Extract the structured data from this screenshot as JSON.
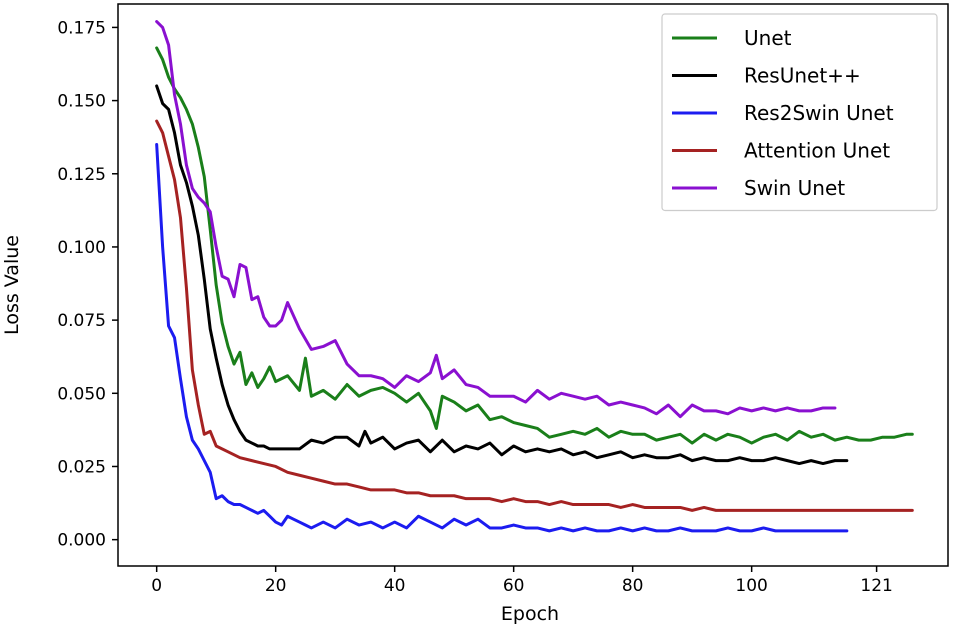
{
  "chart_data": {
    "type": "line",
    "title": "",
    "xlabel": "Epoch",
    "ylabel": "Loss Value",
    "xlim": [
      -6.5,
      133
    ],
    "ylim": [
      -0.009,
      0.183
    ],
    "xticks": [
      0,
      20,
      40,
      60,
      80,
      100,
      121
    ],
    "xtick_labels": [
      "0",
      "20",
      "40",
      "60",
      "80",
      "100",
      "121"
    ],
    "yticks": [
      0.0,
      0.025,
      0.05,
      0.075,
      0.1,
      0.125,
      0.15,
      0.175
    ],
    "ytick_labels": [
      "0.000",
      "0.025",
      "0.050",
      "0.075",
      "0.100",
      "0.125",
      "0.150",
      "0.175"
    ],
    "grid": false,
    "legend_position": "top-right",
    "series": [
      {
        "name": "Unet",
        "color": "#1a7f1a",
        "x": [
          0,
          1,
          2,
          3,
          4,
          5,
          6,
          7,
          8,
          9,
          10,
          11,
          12,
          13,
          14,
          15,
          16,
          17,
          18,
          19,
          20,
          22,
          24,
          25,
          26,
          28,
          30,
          32,
          34,
          36,
          38,
          40,
          42,
          44,
          46,
          47,
          48,
          50,
          52,
          54,
          56,
          58,
          60,
          62,
          64,
          66,
          68,
          70,
          72,
          74,
          76,
          78,
          80,
          82,
          84,
          86,
          88,
          90,
          92,
          94,
          96,
          98,
          100,
          102,
          104,
          106,
          108,
          110,
          112,
          114,
          116,
          118,
          120,
          122,
          124,
          126,
          127
        ],
        "values": [
          0.168,
          0.164,
          0.158,
          0.154,
          0.151,
          0.147,
          0.142,
          0.134,
          0.124,
          0.106,
          0.087,
          0.074,
          0.066,
          0.06,
          0.064,
          0.053,
          0.057,
          0.052,
          0.055,
          0.059,
          0.054,
          0.056,
          0.051,
          0.062,
          0.049,
          0.051,
          0.048,
          0.053,
          0.049,
          0.051,
          0.052,
          0.05,
          0.047,
          0.05,
          0.044,
          0.038,
          0.049,
          0.047,
          0.044,
          0.046,
          0.041,
          0.042,
          0.04,
          0.039,
          0.038,
          0.035,
          0.036,
          0.037,
          0.036,
          0.038,
          0.035,
          0.037,
          0.036,
          0.036,
          0.034,
          0.035,
          0.036,
          0.033,
          0.036,
          0.034,
          0.036,
          0.035,
          0.033,
          0.035,
          0.036,
          0.034,
          0.037,
          0.035,
          0.036,
          0.034,
          0.035,
          0.034,
          0.034,
          0.035,
          0.035,
          0.036,
          0.036
        ]
      },
      {
        "name": "ResUnet++",
        "color": "#000000",
        "x": [
          0,
          1,
          2,
          3,
          4,
          5,
          6,
          7,
          8,
          9,
          10,
          11,
          12,
          13,
          14,
          15,
          16,
          17,
          18,
          19,
          20,
          22,
          24,
          26,
          28,
          30,
          32,
          34,
          35,
          36,
          38,
          40,
          42,
          44,
          46,
          48,
          50,
          52,
          54,
          56,
          58,
          60,
          62,
          64,
          66,
          68,
          70,
          72,
          74,
          76,
          78,
          80,
          82,
          84,
          86,
          88,
          90,
          92,
          94,
          96,
          98,
          100,
          102,
          104,
          106,
          108,
          110,
          112,
          114,
          116
        ],
        "values": [
          0.155,
          0.149,
          0.147,
          0.139,
          0.128,
          0.122,
          0.114,
          0.104,
          0.089,
          0.072,
          0.062,
          0.053,
          0.046,
          0.041,
          0.037,
          0.034,
          0.033,
          0.032,
          0.032,
          0.031,
          0.031,
          0.031,
          0.031,
          0.034,
          0.033,
          0.035,
          0.035,
          0.032,
          0.037,
          0.033,
          0.035,
          0.031,
          0.033,
          0.034,
          0.03,
          0.034,
          0.03,
          0.032,
          0.031,
          0.033,
          0.029,
          0.032,
          0.03,
          0.031,
          0.03,
          0.031,
          0.029,
          0.03,
          0.028,
          0.029,
          0.03,
          0.028,
          0.029,
          0.028,
          0.028,
          0.029,
          0.027,
          0.028,
          0.027,
          0.027,
          0.028,
          0.027,
          0.027,
          0.028,
          0.027,
          0.026,
          0.027,
          0.026,
          0.027,
          0.027
        ]
      },
      {
        "name": "Res2Swin Unet",
        "color": "#1c1cf0",
        "x": [
          0,
          1,
          2,
          3,
          4,
          5,
          6,
          7,
          8,
          9,
          10,
          11,
          12,
          13,
          14,
          15,
          16,
          17,
          18,
          19,
          20,
          21,
          22,
          23,
          24,
          25,
          26,
          28,
          30,
          32,
          34,
          36,
          38,
          40,
          42,
          44,
          46,
          48,
          50,
          52,
          54,
          56,
          58,
          60,
          62,
          64,
          66,
          68,
          70,
          72,
          74,
          76,
          78,
          80,
          82,
          84,
          86,
          88,
          90,
          92,
          94,
          96,
          98,
          100,
          102,
          104,
          106,
          108,
          110,
          112,
          114,
          116
        ],
        "values": [
          0.135,
          0.1,
          0.073,
          0.069,
          0.055,
          0.042,
          0.034,
          0.031,
          0.027,
          0.023,
          0.014,
          0.015,
          0.013,
          0.012,
          0.012,
          0.011,
          0.01,
          0.009,
          0.01,
          0.008,
          0.006,
          0.005,
          0.008,
          0.007,
          0.006,
          0.005,
          0.004,
          0.006,
          0.004,
          0.007,
          0.005,
          0.006,
          0.004,
          0.006,
          0.004,
          0.008,
          0.006,
          0.004,
          0.007,
          0.005,
          0.007,
          0.004,
          0.004,
          0.005,
          0.004,
          0.004,
          0.003,
          0.004,
          0.003,
          0.004,
          0.003,
          0.003,
          0.004,
          0.003,
          0.004,
          0.003,
          0.003,
          0.004,
          0.003,
          0.003,
          0.003,
          0.004,
          0.003,
          0.003,
          0.004,
          0.003,
          0.003,
          0.003,
          0.003,
          0.003,
          0.003,
          0.003
        ]
      },
      {
        "name": "Attention Unet",
        "color": "#a52222",
        "x": [
          0,
          1,
          2,
          3,
          4,
          5,
          6,
          7,
          8,
          9,
          10,
          12,
          14,
          16,
          18,
          20,
          22,
          24,
          26,
          28,
          30,
          32,
          34,
          36,
          38,
          40,
          42,
          44,
          46,
          48,
          50,
          52,
          54,
          56,
          58,
          60,
          62,
          64,
          66,
          68,
          70,
          72,
          74,
          76,
          78,
          80,
          82,
          84,
          86,
          88,
          90,
          92,
          94,
          96,
          98,
          100,
          102,
          104,
          106,
          108,
          110,
          112,
          114,
          116,
          118,
          120,
          122,
          124,
          126,
          127
        ],
        "values": [
          0.143,
          0.139,
          0.131,
          0.123,
          0.11,
          0.086,
          0.058,
          0.046,
          0.036,
          0.037,
          0.032,
          0.03,
          0.028,
          0.027,
          0.026,
          0.025,
          0.023,
          0.022,
          0.021,
          0.02,
          0.019,
          0.019,
          0.018,
          0.017,
          0.017,
          0.017,
          0.016,
          0.016,
          0.015,
          0.015,
          0.015,
          0.014,
          0.014,
          0.014,
          0.013,
          0.014,
          0.013,
          0.013,
          0.012,
          0.013,
          0.012,
          0.012,
          0.012,
          0.012,
          0.011,
          0.012,
          0.011,
          0.011,
          0.011,
          0.011,
          0.01,
          0.011,
          0.01,
          0.01,
          0.01,
          0.01,
          0.01,
          0.01,
          0.01,
          0.01,
          0.01,
          0.01,
          0.01,
          0.01,
          0.01,
          0.01,
          0.01,
          0.01,
          0.01,
          0.01
        ]
      },
      {
        "name": "Swin Unet",
        "color": "#8a10d0",
        "x": [
          0,
          1,
          2,
          3,
          4,
          5,
          6,
          7,
          8,
          9,
          10,
          11,
          12,
          13,
          14,
          15,
          16,
          17,
          18,
          19,
          20,
          21,
          22,
          24,
          26,
          28,
          30,
          32,
          34,
          36,
          38,
          40,
          42,
          44,
          46,
          47,
          48,
          50,
          52,
          54,
          56,
          58,
          60,
          62,
          64,
          66,
          68,
          70,
          72,
          74,
          76,
          78,
          80,
          82,
          84,
          86,
          88,
          90,
          92,
          94,
          96,
          98,
          100,
          102,
          104,
          106,
          108,
          110,
          112,
          114
        ],
        "values": [
          0.177,
          0.175,
          0.169,
          0.152,
          0.142,
          0.128,
          0.12,
          0.117,
          0.115,
          0.112,
          0.1,
          0.09,
          0.089,
          0.083,
          0.094,
          0.093,
          0.082,
          0.083,
          0.076,
          0.073,
          0.073,
          0.075,
          0.081,
          0.072,
          0.065,
          0.066,
          0.068,
          0.06,
          0.056,
          0.056,
          0.055,
          0.052,
          0.056,
          0.054,
          0.057,
          0.063,
          0.055,
          0.058,
          0.053,
          0.052,
          0.049,
          0.049,
          0.049,
          0.047,
          0.051,
          0.048,
          0.05,
          0.049,
          0.048,
          0.049,
          0.046,
          0.047,
          0.046,
          0.045,
          0.043,
          0.046,
          0.042,
          0.046,
          0.044,
          0.044,
          0.043,
          0.045,
          0.044,
          0.045,
          0.044,
          0.045,
          0.044,
          0.044,
          0.045,
          0.045
        ]
      }
    ]
  }
}
